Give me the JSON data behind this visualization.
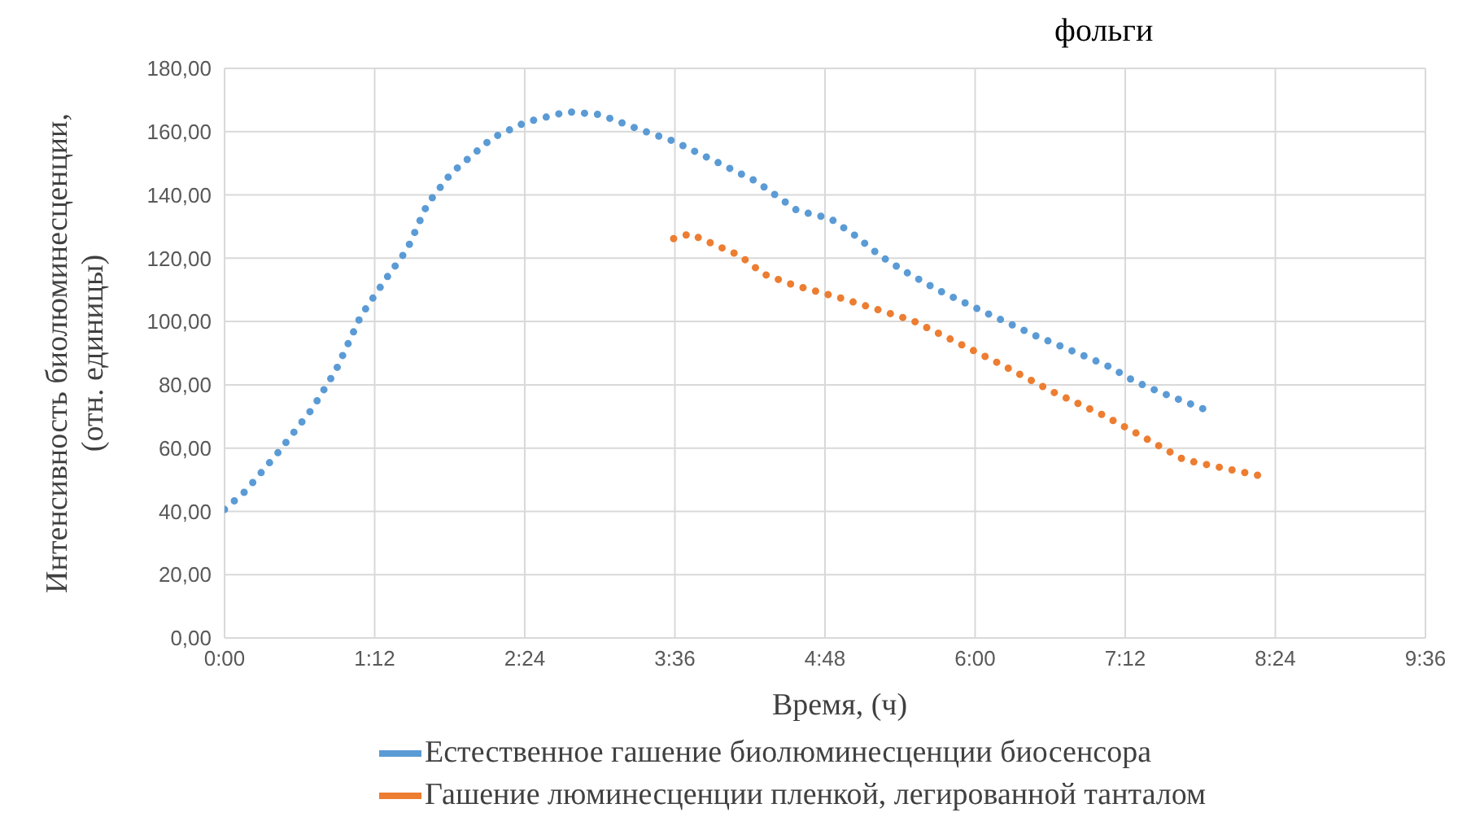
{
  "chart_data": {
    "type": "line",
    "annotations": [
      "фольги"
    ],
    "xlabel": "Время, (ч)",
    "ylabel": "Интенсивность биолюминесценции, (отн. единицы)",
    "xlim": [
      0,
      9.6
    ],
    "xticks": [
      {
        "value": 0,
        "label": "0:00"
      },
      {
        "value": 1.2,
        "label": "1:12"
      },
      {
        "value": 2.4,
        "label": "2:24"
      },
      {
        "value": 3.6,
        "label": "3:36"
      },
      {
        "value": 4.8,
        "label": "4:48"
      },
      {
        "value": 6,
        "label": "6:00"
      },
      {
        "value": 7.2,
        "label": "7:12"
      },
      {
        "value": 8.4,
        "label": "8:24"
      },
      {
        "value": 9.6,
        "label": "9:36"
      }
    ],
    "ylim": [
      0,
      180
    ],
    "yticks": [
      {
        "value": 0,
        "label": "0,00"
      },
      {
        "value": 20,
        "label": "20,00"
      },
      {
        "value": 40,
        "label": "40,00"
      },
      {
        "value": 60,
        "label": "60,00"
      },
      {
        "value": 80,
        "label": "80,00"
      },
      {
        "value": 100,
        "label": "100,00"
      },
      {
        "value": 120,
        "label": "120,00"
      },
      {
        "value": 140,
        "label": "140,00"
      },
      {
        "value": 160,
        "label": "160,00"
      },
      {
        "value": 180,
        "label": "180,00"
      }
    ],
    "grid": true,
    "legend": "bottom",
    "marker": "none",
    "line_style": "dotted",
    "series": [
      {
        "name": "Естественное гашение биолюминесценции биосенсора",
        "color": "#5b9bd5",
        "x": [
          0,
          0.17,
          0.43,
          0.7,
          0.89,
          1.09,
          1.29,
          1.46,
          1.62,
          1.81,
          2.14,
          2.41,
          2.74,
          3.0,
          3.33,
          3.59,
          3.92,
          4.25,
          4.58,
          4.84,
          5.04,
          5.24,
          5.43,
          5.7,
          6.09,
          6.49,
          6.88,
          7.08,
          7.27,
          7.47,
          7.89
        ],
        "values": [
          40.6,
          46.5,
          58.7,
          72.4,
          84.6,
          101.8,
          113.5,
          122.8,
          137,
          146.8,
          158,
          163,
          166.3,
          165.4,
          160.5,
          157,
          150.7,
          144.3,
          135,
          132.6,
          127.2,
          120.8,
          116,
          110,
          102.7,
          95.4,
          89,
          85.6,
          81.2,
          77.8,
          71.4
        ]
      },
      {
        "name": "Гашение люминесценции пленкой, легированной танталом",
        "color": "#ed7d31",
        "x": [
          3.59,
          3.72,
          4.12,
          4.31,
          4.55,
          4.91,
          5.5,
          5.83,
          6.2,
          6.62,
          7.02,
          7.34,
          7.67,
          8.32
        ],
        "values": [
          126.2,
          127.7,
          120.8,
          115,
          111.5,
          107.6,
          100.3,
          93.9,
          86.6,
          77.8,
          70.5,
          63.6,
          56.3,
          50.9
        ]
      }
    ]
  }
}
